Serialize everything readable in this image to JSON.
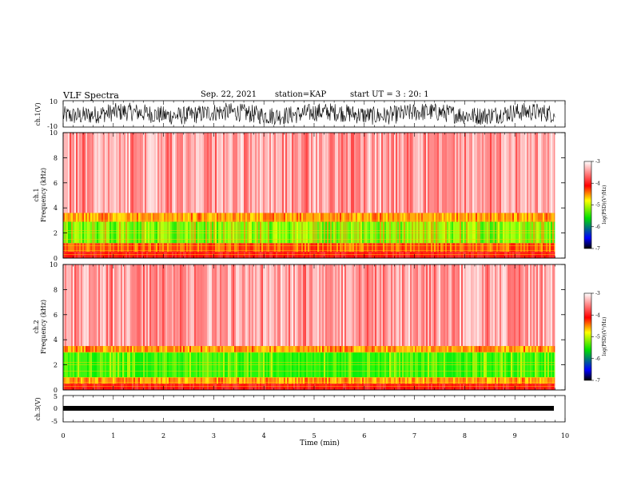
{
  "header": {
    "title": "VLF Spectra",
    "date": "Sep. 22, 2021",
    "station": "station=KAP",
    "start": "start UT =  3 : 20: 1"
  },
  "chart_data": [
    {
      "type": "line",
      "panel": "ch1-waveform",
      "ylabel": "ch.1(V)",
      "ylim": [
        -10,
        10
      ],
      "yticks": [
        "10",
        "-10"
      ],
      "xlim": [
        0,
        10
      ],
      "series_color": "#000000",
      "description_values": {
        "center": 0,
        "amplitude_range": [
          -7,
          7
        ]
      }
    },
    {
      "type": "heatmap",
      "panel": "ch1-spectrogram",
      "ylabel": "ch.1\nFrequency (kHz)",
      "ylabel_line1": "ch.1",
      "ylabel_line2": "Frequency (kHz)",
      "ylim": [
        0,
        10
      ],
      "yticks": [
        "0",
        "2",
        "4",
        "6",
        "8",
        "10"
      ],
      "xlim": [
        0,
        9.8
      ],
      "bands": [
        {
          "from": 0,
          "to": 0.5,
          "level": "red"
        },
        {
          "from": 0.5,
          "to": 1.2,
          "level": "red-yellow"
        },
        {
          "from": 1.2,
          "to": 2.9,
          "level": "green-yellow"
        },
        {
          "from": 2.9,
          "to": 3.6,
          "level": "yellow-red"
        },
        {
          "from": 3.6,
          "to": 10,
          "level": "red-white"
        }
      ],
      "colorbar": {
        "label": "log(PSD)(V²/Hz)",
        "ticks": [
          "-3",
          "-4",
          "-5",
          "-6",
          "-7"
        ],
        "range": [
          -7,
          -3
        ]
      }
    },
    {
      "type": "heatmap",
      "panel": "ch2-spectrogram",
      "ylabel_line1": "ch.2",
      "ylabel_line2": "Frequency (kHz)",
      "ylim": [
        0,
        10
      ],
      "yticks": [
        "0",
        "2",
        "4",
        "6",
        "8",
        "10"
      ],
      "xlim": [
        0,
        9.8
      ],
      "bands": [
        {
          "from": 0,
          "to": 0.5,
          "level": "red"
        },
        {
          "from": 0.5,
          "to": 1.0,
          "level": "yellow-red"
        },
        {
          "from": 1.0,
          "to": 3.0,
          "level": "green"
        },
        {
          "from": 3.0,
          "to": 3.5,
          "level": "yellow-red"
        },
        {
          "from": 3.5,
          "to": 10,
          "level": "red-white"
        }
      ],
      "colorbar": {
        "label": "log(PSD)(V²/Hz)",
        "ticks": [
          "-3",
          "-4",
          "-5",
          "-6",
          "-7"
        ],
        "range": [
          -7,
          -3
        ]
      }
    },
    {
      "type": "line",
      "panel": "ch3-waveform",
      "ylabel": "ch.3(V)",
      "ylim": [
        -5,
        5
      ],
      "yticks": [
        "5",
        "0",
        "-5"
      ],
      "xlim": [
        0,
        10
      ],
      "series_color": "#000000",
      "description_values": {
        "center": -1.5,
        "amplitude_range": [
          -2,
          -1
        ]
      }
    }
  ],
  "xaxis": {
    "label": "Time (min)",
    "ticks": [
      "0",
      "1",
      "2",
      "3",
      "4",
      "5",
      "6",
      "7",
      "8",
      "9",
      "10"
    ],
    "range": [
      0,
      10
    ],
    "data_end": 9.8
  },
  "colors": {
    "colormap": [
      "#ffffff",
      "#ff0000",
      "#ffff00",
      "#00ff00",
      "#0000ff",
      "#000000"
    ]
  }
}
